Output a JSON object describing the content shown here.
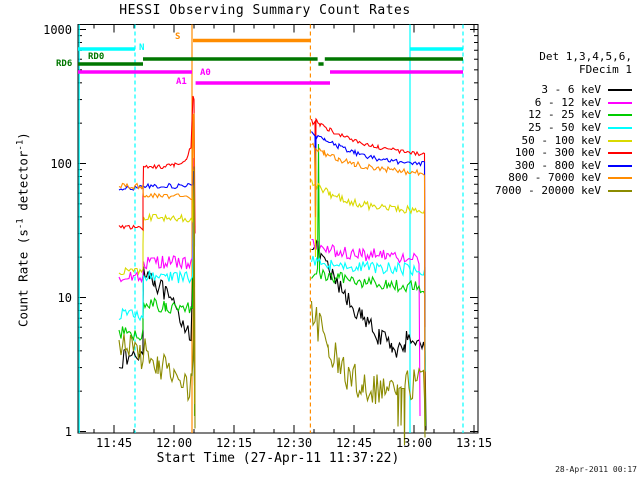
{
  "title": "HESSI Observing Summary Count Rates",
  "footer": {
    "timestamp": "28-Apr-2011 00:17"
  },
  "axes": {
    "x": {
      "label": "Start Time (27-Apr-11 11:37:22)",
      "ticks": [
        {
          "label": "11:45",
          "minutes": 45
        },
        {
          "label": "12:00",
          "minutes": 60
        },
        {
          "label": "12:15",
          "minutes": 75
        },
        {
          "label": "12:30",
          "minutes": 90
        },
        {
          "label": "12:45",
          "minutes": 105
        },
        {
          "label": "13:00",
          "minutes": 120
        },
        {
          "label": "13:15",
          "minutes": 135
        }
      ],
      "range_minutes_after_1100": [
        36,
        136
      ]
    },
    "y": {
      "label_pre": "Count Rate (s",
      "label_sup1": "-1",
      "label_mid": " detector",
      "label_sup2": "-1",
      "label_post": ")",
      "scale": "log",
      "range": [
        1,
        1000
      ],
      "ticks": [
        {
          "label": "1000",
          "value": 1000
        },
        {
          "label": "100",
          "value": 100
        },
        {
          "label": "10",
          "value": 10
        },
        {
          "label": "1",
          "value": 1
        }
      ]
    }
  },
  "legend": {
    "header_line1": "Det 1,3,4,5,6,",
    "header_line2": "FDecim 1",
    "items": [
      {
        "label": "3 - 6 keV",
        "color": "#000000"
      },
      {
        "label": "6 - 12 keV",
        "color": "#ff00ff"
      },
      {
        "label": "12 - 25 keV",
        "color": "#00cc00"
      },
      {
        "label": "25 - 50 keV",
        "color": "#00ffff"
      },
      {
        "label": "50 - 100 keV",
        "color": "#d9d900"
      },
      {
        "label": "100 - 300 keV",
        "color": "#ff0000"
      },
      {
        "label": "300 - 800 keV",
        "color": "#0000ff"
      },
      {
        "label": "800 - 7000 keV",
        "color": "#ff8c00"
      },
      {
        "label": "7000 - 20000 keV",
        "color": "#8b8b00"
      }
    ]
  },
  "chart_data": {
    "type": "line",
    "title": "HESSI Observing Summary Count Rates",
    "xlabel": "Start Time (27-Apr-11 11:37:22)",
    "ylabel": "Count Rate (s-1 detector-1)",
    "x_unit": "minutes after 11:00 on 27-Apr-11",
    "y_unit": "counts s-1 detector-1 (log scale)",
    "xlim_minutes": [
      36,
      136
    ],
    "ylim": [
      1,
      1000
    ],
    "series": [
      {
        "name": "3 - 6 keV",
        "color": "#000000",
        "noise": 0.07,
        "segments": [
          [
            [
              46.3,
              3.4
            ],
            [
              52.2,
              3.8
            ],
            [
              52.4,
              17
            ],
            [
              55,
              13.5
            ],
            [
              58,
              10.5
            ],
            [
              61,
              7.5
            ],
            [
              64.3,
              5.3
            ],
            [
              64.8,
              25
            ],
            [
              65.1,
              2.2
            ]
          ],
          [
            [
              94.4,
              26
            ],
            [
              95.5,
              23
            ],
            [
              99,
              15
            ],
            [
              103,
              10
            ],
            [
              107,
              7
            ],
            [
              111,
              5.2
            ],
            [
              114.5,
              4.3
            ],
            [
              117.8,
              3.9
            ],
            [
              118.1,
              5.6
            ],
            [
              120,
              4.9
            ],
            [
              122.8,
              4.2
            ],
            [
              122.95,
              1.02
            ]
          ]
        ]
      },
      {
        "name": "6 - 12 keV",
        "color": "#ff00ff",
        "noise": 0.05,
        "segments": [
          [
            [
              46.3,
              14.5
            ],
            [
              52.2,
              14.5
            ],
            [
              52.4,
              18.5
            ],
            [
              64.6,
              18
            ],
            [
              64.9,
              110
            ],
            [
              65.15,
              12
            ]
          ],
          [
            [
              94.4,
              25
            ],
            [
              96,
              23.5
            ],
            [
              101,
              22
            ],
            [
              107,
              21
            ],
            [
              113,
              20.5
            ],
            [
              121.3,
              19.5
            ],
            [
              121.45,
              1.3
            ]
          ]
        ]
      },
      {
        "name": "12 - 25 keV",
        "color": "#00cc00",
        "noise": 0.05,
        "segments": [
          [
            [
              46.3,
              5.4
            ],
            [
              52.2,
              5.4
            ],
            [
              52.4,
              9.2
            ],
            [
              58,
              8.6
            ],
            [
              64.6,
              8.1
            ],
            [
              64.9,
              60
            ],
            [
              65.15,
              1.3
            ]
          ],
          [
            [
              94.4,
              14.5
            ],
            [
              95.9,
              15
            ],
            [
              96.1,
              140
            ],
            [
              96.4,
              15.5
            ],
            [
              101,
              14
            ],
            [
              107,
              13
            ],
            [
              113,
              12.4
            ],
            [
              122.7,
              11.8
            ],
            [
              122.85,
              1.1
            ]
          ]
        ]
      },
      {
        "name": "25 - 50 keV",
        "color": "#00ffff",
        "noise": 0.045,
        "segments": [
          [
            [
              46.3,
              7.5
            ],
            [
              52.2,
              7.5
            ],
            [
              52.4,
              14.5
            ],
            [
              64.6,
              14
            ],
            [
              64.9,
              40
            ],
            [
              65.15,
              5
            ]
          ],
          [
            [
              94.4,
              18.5
            ],
            [
              99,
              17.5
            ],
            [
              106,
              17
            ],
            [
              113,
              16.6
            ],
            [
              122.7,
              16
            ],
            [
              122.85,
              2.8
            ]
          ]
        ]
      },
      {
        "name": "50 - 100 keV",
        "color": "#d9d900",
        "noise": 0.03,
        "segments": [
          [
            [
              46.3,
              15.5
            ],
            [
              52.2,
              15.5
            ],
            [
              52.4,
              40
            ],
            [
              64.6,
              39
            ],
            [
              64.9,
              90
            ],
            [
              65.15,
              1.6
            ]
          ],
          [
            [
              94.4,
              75
            ],
            [
              95.25,
              70
            ],
            [
              95.4,
              20
            ],
            [
              95.55,
              68
            ],
            [
              99,
              59
            ],
            [
              104,
              52
            ],
            [
              110,
              48
            ],
            [
              116,
              46
            ],
            [
              122.6,
              44
            ],
            [
              122.75,
              1.1
            ]
          ]
        ]
      },
      {
        "name": "100 - 300 keV",
        "color": "#ff0000",
        "noise": 0.016,
        "segments": [
          [
            [
              46.3,
              34
            ],
            [
              52.2,
              33
            ],
            [
              52.4,
              95
            ],
            [
              56,
              94
            ],
            [
              60,
              97
            ],
            [
              63,
              104
            ],
            [
              64.3,
              135
            ],
            [
              64.7,
              320
            ],
            [
              65.05,
              300
            ],
            [
              65.3,
              30
            ]
          ],
          [
            [
              94.4,
              215
            ],
            [
              94.8,
              195
            ],
            [
              95.2,
              205
            ],
            [
              95.4,
              62
            ],
            [
              95.55,
              215
            ],
            [
              96.5,
              196
            ],
            [
              99,
              178
            ],
            [
              102,
              160
            ],
            [
              106,
              145
            ],
            [
              111,
              132
            ],
            [
              116,
              124
            ],
            [
              122.6,
              116
            ],
            [
              122.75,
              6
            ]
          ]
        ]
      },
      {
        "name": "300 - 800 keV",
        "color": "#0000ff",
        "noise": 0.018,
        "segments": [
          [
            [
              46.3,
              66
            ],
            [
              52.2,
              66
            ],
            [
              52.4,
              68
            ],
            [
              64.6,
              68
            ],
            [
              64.9,
              88
            ],
            [
              65.15,
              24
            ]
          ],
          [
            [
              94.4,
              168
            ],
            [
              95.2,
              158
            ],
            [
              95.4,
              48
            ],
            [
              95.55,
              160
            ],
            [
              97.5,
              150
            ],
            [
              101,
              135
            ],
            [
              105,
              121
            ],
            [
              110,
              110
            ],
            [
              116,
              103
            ],
            [
              122.6,
              100
            ],
            [
              122.75,
              2.2
            ]
          ]
        ]
      },
      {
        "name": "800 - 7000 keV",
        "color": "#ff8c00",
        "noise": 0.022,
        "segments": [
          [
            [
              46.3,
              68
            ],
            [
              52.2,
              67
            ],
            [
              52.4,
              57
            ],
            [
              64.5,
              56
            ],
            [
              64.8,
              230
            ],
            [
              65.05,
              235
            ],
            [
              65.25,
              1.3
            ]
          ],
          [
            [
              94.35,
              140
            ],
            [
              95.2,
              130
            ],
            [
              95.4,
              40
            ],
            [
              95.55,
              128
            ],
            [
              97.5,
              120
            ],
            [
              101,
              108
            ],
            [
              105,
              99
            ],
            [
              110,
              92
            ],
            [
              116,
              88
            ],
            [
              122.6,
              85
            ],
            [
              122.75,
              1.1
            ]
          ]
        ]
      },
      {
        "name": "7000 - 20000 keV",
        "color": "#8b8b00",
        "noise": 0.13,
        "segments": [
          [
            [
              46.3,
              4.3
            ],
            [
              52.3,
              3.9
            ],
            [
              56,
              3.1
            ],
            [
              60,
              2.5
            ],
            [
              64.5,
              2.1
            ],
            [
              64.85,
              5
            ],
            [
              65.0,
              95
            ],
            [
              65.2,
              1.05
            ]
          ],
          [
            [
              94.4,
              7.5
            ],
            [
              96,
              6.2
            ],
            [
              98.5,
              4.4
            ],
            [
              101,
              3.2
            ],
            [
              103.5,
              2.6
            ],
            [
              107,
              2.3
            ],
            [
              110,
              2.15
            ],
            [
              113,
              2.1
            ],
            [
              115.9,
              2.1
            ],
            [
              116.05,
              0.78
            ],
            [
              116.2,
              2.1
            ],
            [
              116.7,
              2.15
            ],
            [
              116.85,
              0.8
            ],
            [
              117.0,
              2.1
            ],
            [
              117.45,
              2.1
            ],
            [
              117.6,
              0.78
            ],
            [
              117.75,
              2.2
            ],
            [
              120,
              2.3
            ],
            [
              122.6,
              2.3
            ],
            [
              122.75,
              0.9
            ]
          ]
        ]
      }
    ],
    "state_bars": [
      {
        "label": "N",
        "color": "#00ffff",
        "intervals": [
          [
            36,
            50.25
          ],
          [
            118.9,
            132.25
          ]
        ]
      },
      {
        "label": "RD0",
        "color": "#007700",
        "intervals": [
          [
            52.25,
            95.9
          ],
          [
            97.7,
            132.25
          ]
        ]
      },
      {
        "label": "RD6",
        "color": "#007700",
        "intervals": [
          [
            36,
            52.25
          ],
          [
            96.1,
            97.4
          ]
        ]
      },
      {
        "label": "A0",
        "color": "#ff00ff",
        "intervals": [
          [
            36,
            64.5
          ],
          [
            99,
            132.25
          ]
        ]
      },
      {
        "label": "A1",
        "color": "#ff00ff",
        "intervals": [
          [
            65.4,
            99
          ]
        ]
      },
      {
        "label": "S",
        "color": "#ff8c00",
        "intervals": [
          [
            64.75,
            94.25
          ]
        ]
      }
    ],
    "event_lines": [
      {
        "t": 36.3,
        "color": "#00ffff",
        "style": "solid"
      },
      {
        "t": 50.25,
        "color": "#00ffff",
        "style": "dashed"
      },
      {
        "t": 64.5,
        "color": "#ff8c00",
        "style": "solid"
      },
      {
        "t": 94.1,
        "color": "#ff8c00",
        "style": "dashed"
      },
      {
        "t": 119,
        "color": "#00ffff",
        "style": "solid"
      },
      {
        "t": 132.25,
        "color": "#00ffff",
        "style": "dashed"
      }
    ],
    "legend_position": "right",
    "grid": false
  }
}
